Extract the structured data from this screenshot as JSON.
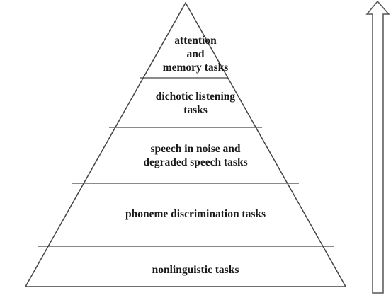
{
  "diagram": {
    "tiers": [
      {
        "label": "attention\nand\nmemory tasks"
      },
      {
        "label": "dichotic listening\ntasks"
      },
      {
        "label": "speech in noise and\ndegraded speech tasks"
      },
      {
        "label": "phoneme discrimination tasks"
      },
      {
        "label": "nonlinguistic tasks"
      }
    ],
    "line_color": "#444444",
    "arrow_color": "#555555"
  }
}
